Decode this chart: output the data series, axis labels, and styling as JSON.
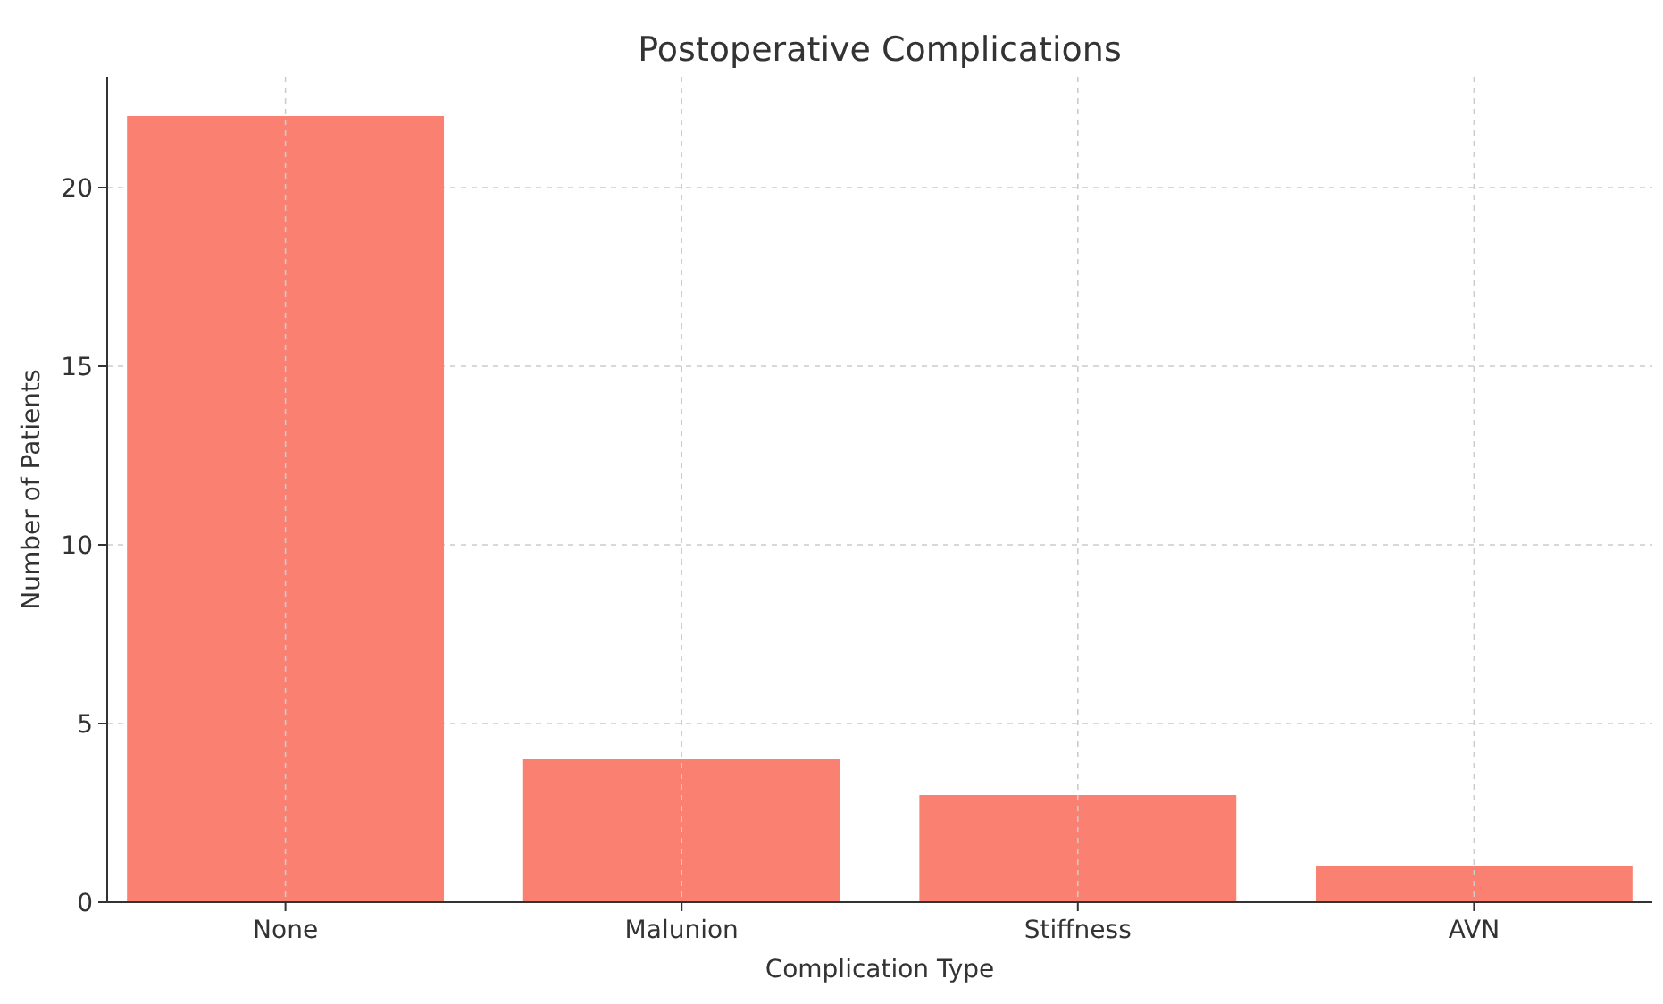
{
  "chart_data": {
    "type": "bar",
    "title": "Postoperative Complications",
    "xlabel": "Complication Type",
    "ylabel": "Number of Patients",
    "categories": [
      "None",
      "Malunion",
      "Stiffness",
      "AVN"
    ],
    "values": [
      22,
      4,
      3,
      1
    ],
    "color": "#fa8072",
    "ylim": [
      0,
      23.1
    ],
    "yticks": [
      0,
      5,
      10,
      15,
      20
    ],
    "grid": true
  }
}
